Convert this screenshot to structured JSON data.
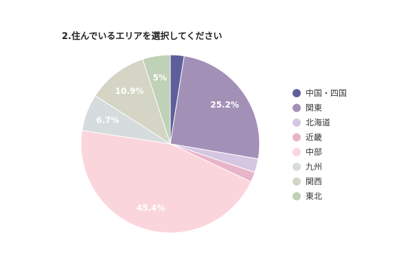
{
  "chart_data": {
    "type": "pie",
    "title": "2.住んでいるエリアを選択してください",
    "categories": [
      "中国・四国",
      "関東",
      "北海道",
      "近畿",
      "中部",
      "九州",
      "関西",
      "東北"
    ],
    "values": [
      2.5,
      25.2,
      2.5,
      1.8,
      45.4,
      6.7,
      10.9,
      5.0
    ],
    "labels": [
      "",
      "25.2%",
      "",
      "",
      "45.4%",
      "6.7%",
      "10.9%",
      "5%"
    ],
    "colors": [
      "#5e5f9a",
      "#a390b7",
      "#d5c6e2",
      "#e8b4c9",
      "#fbd5dc",
      "#d6dcdd",
      "#d5d5c6",
      "#bfd1b6"
    ],
    "legend_position": "right"
  }
}
